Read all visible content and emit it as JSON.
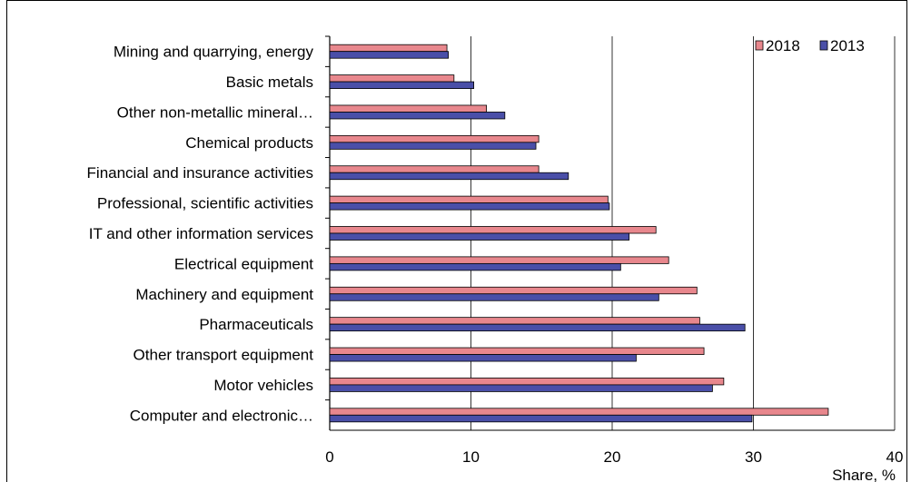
{
  "chart_data": {
    "type": "bar",
    "orientation": "horizontal",
    "categories": [
      "Mining and quarrying, energy",
      "Basic metals",
      "Other non-metallic mineral…",
      "Chemical products",
      "Financial and insurance activities",
      "Professional, scientific activities",
      "IT and other information services",
      "Electrical equipment",
      "Machinery and equipment",
      "Pharmaceuticals",
      "Other transport equipment",
      "Motor vehicles",
      "Computer and electronic…"
    ],
    "series": [
      {
        "name": "2018",
        "color": "#e8878d",
        "values": [
          8.3,
          8.8,
          11.1,
          14.8,
          14.8,
          19.7,
          23.1,
          24.0,
          26.0,
          26.2,
          26.5,
          27.9,
          35.3
        ]
      },
      {
        "name": "2013",
        "color": "#4a4fa8",
        "values": [
          8.4,
          10.2,
          12.4,
          14.6,
          16.9,
          19.8,
          21.2,
          20.6,
          23.3,
          29.4,
          21.7,
          27.1,
          29.9
        ]
      }
    ],
    "xlabel": "Share, %",
    "xlim": [
      0,
      40
    ],
    "xticks": [
      "0",
      "10",
      "20",
      "30",
      "40"
    ],
    "grid": "vertical",
    "legend_position": "top-right"
  }
}
